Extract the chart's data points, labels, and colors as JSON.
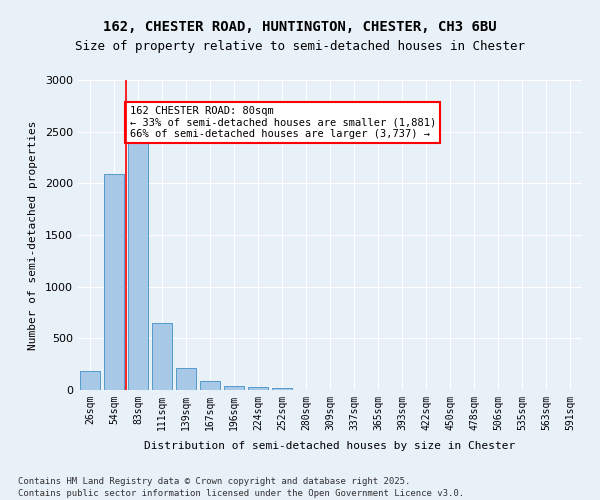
{
  "title_line1": "162, CHESTER ROAD, HUNTINGTON, CHESTER, CH3 6BU",
  "title_line2": "Size of property relative to semi-detached houses in Chester",
  "xlabel": "Distribution of semi-detached houses by size in Chester",
  "ylabel": "Number of semi-detached properties",
  "categories": [
    "26sqm",
    "54sqm",
    "83sqm",
    "111sqm",
    "139sqm",
    "167sqm",
    "196sqm",
    "224sqm",
    "252sqm",
    "280sqm",
    "309sqm",
    "337sqm",
    "365sqm",
    "393sqm",
    "422sqm",
    "450sqm",
    "478sqm",
    "506sqm",
    "535sqm",
    "563sqm",
    "591sqm"
  ],
  "values": [
    185,
    2090,
    2420,
    650,
    210,
    85,
    40,
    25,
    20,
    0,
    0,
    0,
    0,
    0,
    0,
    0,
    0,
    0,
    0,
    0,
    0
  ],
  "bar_color": "#a8c8e8",
  "bar_edge_color": "#5599cc",
  "property_line_x": 1.5,
  "property_value": 80,
  "property_label": "162 CHESTER ROAD: 80sqm",
  "pct_smaller": 33,
  "pct_larger": 66,
  "count_smaller": 1881,
  "count_larger": 3737,
  "annotation_box_color": "#ff0000",
  "ylim": [
    0,
    3000
  ],
  "yticks": [
    0,
    500,
    1000,
    1500,
    2000,
    2500,
    3000
  ],
  "footnote1": "Contains HM Land Registry data © Crown copyright and database right 2025.",
  "footnote2": "Contains public sector information licensed under the Open Government Licence v3.0.",
  "background_color": "#e8f0f8",
  "grid_color": "#ffffff"
}
